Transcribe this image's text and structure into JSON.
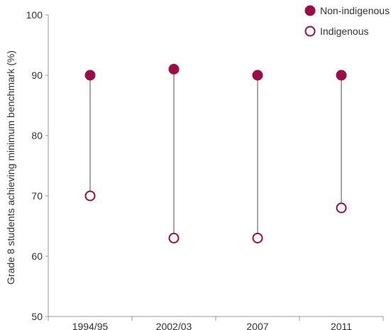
{
  "chart_data": {
    "type": "scatter",
    "subtype": "dumbbell",
    "ylabel": "Grade 8 students achieving minimum benchmark (%)",
    "xlabel": "",
    "ylim": [
      50,
      100
    ],
    "yticks": [
      50,
      60,
      70,
      80,
      90,
      100
    ],
    "categories": [
      "1994/95",
      "2002/03",
      "2007",
      "2011"
    ],
    "series": [
      {
        "name": "Non-indigenous",
        "marker": "filled-circle",
        "color": "#9b0d47",
        "values": [
          90,
          91,
          90,
          90
        ]
      },
      {
        "name": "Indigenous",
        "marker": "open-circle",
        "color": "#9b0d47",
        "values": [
          70,
          63,
          63,
          68
        ]
      }
    ],
    "connector_color": "#a6a6a6",
    "grid": false,
    "legend_position": "top-right"
  }
}
